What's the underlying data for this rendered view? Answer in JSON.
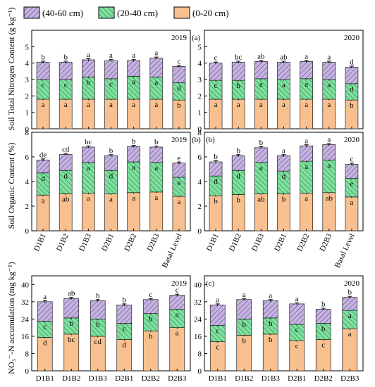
{
  "legend": [
    {
      "label": "(40-60 cm)",
      "color": "#c6b4e0",
      "hatch": "#6a4e98"
    },
    {
      "label": "(20-40 cm)",
      "color": "#7fe0a0",
      "hatch": "#2a8a4a"
    },
    {
      "label": "(0-20 cm)",
      "color": "#f9c08f",
      "hatch": null
    }
  ],
  "chart_data": [
    {
      "type": "bar",
      "stacked": true,
      "panel": "(a)",
      "title": "2019",
      "ylabel": "Soil Total Nitrogen Content (g kg⁻¹)",
      "ylim": [
        0,
        6
      ],
      "yticks": [
        0,
        1,
        2,
        3,
        4,
        5
      ],
      "categories": [
        "D1B1",
        "D1B2",
        "D1B3",
        "D2B1",
        "D2B2",
        "D2B3",
        "Basal Level"
      ],
      "series": [
        {
          "name": "(0-20 cm)",
          "values": [
            1.8,
            1.8,
            1.8,
            1.8,
            1.8,
            1.8,
            1.75
          ],
          "letters": [
            "a",
            "a",
            "a",
            "a",
            "a",
            "a",
            "b"
          ]
        },
        {
          "name": "(20-40 cm)",
          "values": [
            1.2,
            1.2,
            1.35,
            1.25,
            1.4,
            1.35,
            1.05
          ],
          "letters": [
            "c",
            "c",
            "b",
            "c",
            "a",
            "a",
            "d"
          ]
        },
        {
          "name": "(40-60 cm)",
          "values": [
            1.05,
            1.05,
            1.05,
            1.1,
            0.95,
            1.15,
            1.0
          ],
          "letters": [
            "b",
            "b",
            "a",
            "a",
            "a",
            "a",
            "c"
          ]
        }
      ]
    },
    {
      "type": "bar",
      "stacked": true,
      "panel": "",
      "title": "2020",
      "ylim": [
        0,
        6
      ],
      "yticks": [
        0,
        1,
        2,
        3,
        4,
        5
      ],
      "categories": [
        "D1B1",
        "D1B2",
        "D1B3",
        "D2B1",
        "D2B2",
        "D2B3",
        "Basal Level"
      ],
      "series": [
        {
          "name": "(0-20 cm)",
          "values": [
            1.8,
            1.8,
            1.8,
            1.8,
            1.8,
            1.8,
            1.75
          ],
          "letters": [
            "a",
            "a",
            "a",
            "a",
            "a",
            "a",
            "b"
          ]
        },
        {
          "name": "(20-40 cm)",
          "values": [
            1.15,
            1.15,
            1.25,
            1.2,
            1.25,
            1.2,
            1.0
          ],
          "letters": [
            "c",
            "b",
            "a",
            "a",
            "a",
            "a",
            "d"
          ]
        },
        {
          "name": "(40-60 cm)",
          "values": [
            1.05,
            1.1,
            1.05,
            1.05,
            1.05,
            1.05,
            1.0
          ],
          "letters": [
            "c",
            "bc",
            "ab",
            "ab",
            "a",
            "a",
            "d"
          ]
        }
      ]
    },
    {
      "type": "bar",
      "stacked": true,
      "panel": "(b)",
      "title": "2019",
      "ylabel": "Soil Organic Content (%)",
      "ylim": [
        0,
        8
      ],
      "yticks": [
        0,
        2,
        4,
        6,
        8
      ],
      "categories": [
        "D1B1",
        "D1B2",
        "D1B3",
        "D2B1",
        "D2B2",
        "D2B3",
        "Basal Level"
      ],
      "series": [
        {
          "name": "(0-20 cm)",
          "values": [
            2.9,
            3.0,
            3.05,
            3.0,
            3.1,
            3.15,
            2.8
          ],
          "letters": [
            "a",
            "ab",
            "a",
            "a",
            "a",
            "a",
            "a"
          ]
        },
        {
          "name": "(20-40 cm)",
          "values": [
            1.8,
            1.9,
            2.5,
            1.9,
            2.5,
            2.4,
            1.55
          ],
          "letters": [
            "d",
            "d",
            "a",
            "d",
            "a",
            "a",
            "e"
          ]
        },
        {
          "name": "(40-60 cm)",
          "values": [
            1.05,
            1.3,
            1.25,
            1.2,
            1.25,
            1.25,
            1.15
          ],
          "letters": [
            "de",
            "cd",
            "bc",
            "b",
            "b",
            "b",
            "e"
          ]
        }
      ]
    },
    {
      "type": "bar",
      "stacked": true,
      "panel": "(b)",
      "title": "2020",
      "ylim": [
        0,
        8
      ],
      "yticks": [
        0,
        2,
        4,
        6,
        8
      ],
      "categories": [
        "D1B1",
        "D1B2",
        "D1B3",
        "D2B1",
        "D2B2",
        "D2B3",
        "Basal Level"
      ],
      "series": [
        {
          "name": "(0-20 cm)",
          "values": [
            2.85,
            2.95,
            3.0,
            3.0,
            3.05,
            3.1,
            2.75
          ],
          "letters": [
            "b",
            "b",
            "ab",
            "b",
            "a",
            "ab",
            "a"
          ]
        },
        {
          "name": "(20-40 cm)",
          "values": [
            1.6,
            1.95,
            2.55,
            1.85,
            2.6,
            2.65,
            1.5
          ],
          "letters": [
            "d",
            "d",
            "a",
            "d",
            "a",
            "a",
            "e"
          ]
        },
        {
          "name": "(40-60 cm)",
          "values": [
            1.15,
            1.2,
            1.2,
            1.25,
            1.25,
            1.25,
            1.15
          ],
          "letters": [
            "b",
            "b",
            "b",
            "a",
            "a",
            "a",
            "c"
          ]
        }
      ]
    },
    {
      "type": "bar",
      "stacked": true,
      "panel": "",
      "title": "2019",
      "ylabel": "NO₃⁻-N accumulation (mg kg⁻¹)",
      "ylim": [
        0,
        44
      ],
      "yticks": [
        0,
        8,
        16,
        24,
        32,
        40
      ],
      "categories": [
        "D1B1",
        "D1B2",
        "D1B3",
        "D2B1",
        "D2B2",
        "D2B3"
      ],
      "series": [
        {
          "name": "(0-20 cm)",
          "values": [
            15.5,
            17.0,
            16.0,
            14.5,
            18.5,
            20.0
          ],
          "letters": [
            "d",
            "bc",
            "cd",
            "d",
            "b",
            "a"
          ]
        },
        {
          "name": "(20-40 cm)",
          "values": [
            7.5,
            7.5,
            8.0,
            7.5,
            8.0,
            8.5
          ],
          "letters": [
            "c",
            "b",
            "b",
            "c",
            "b",
            "a"
          ]
        },
        {
          "name": "(40-60 cm)",
          "values": [
            9.0,
            9.0,
            8.5,
            8.5,
            6.5,
            6.5
          ],
          "letters": [
            "a",
            "ab",
            "b",
            "b",
            "c",
            "c"
          ]
        }
      ]
    },
    {
      "type": "bar",
      "stacked": true,
      "panel": "(c)",
      "title": "2020",
      "ylim": [
        0,
        44
      ],
      "yticks": [
        0,
        8,
        16,
        24,
        32,
        40
      ],
      "categories": [
        "D1B1",
        "D1B2",
        "D1B3",
        "D2B1",
        "D2B2",
        "D2B3"
      ],
      "series": [
        {
          "name": "(0-20 cm)",
          "values": [
            13.5,
            16.5,
            17.0,
            14.0,
            14.5,
            19.5
          ],
          "letters": [
            "c",
            "b",
            "b",
            "c",
            "c",
            "a"
          ]
        },
        {
          "name": "(20-40 cm)",
          "values": [
            7.5,
            7.5,
            7.5,
            7.5,
            7.5,
            8.5
          ],
          "letters": [
            "c",
            "b",
            "b",
            "c",
            "b",
            "a"
          ]
        },
        {
          "name": "(40-60 cm)",
          "values": [
            9.5,
            9.0,
            8.0,
            9.5,
            6.5,
            6.0
          ],
          "letters": [
            "a",
            "a",
            "a",
            "a",
            "b",
            "b"
          ]
        }
      ]
    }
  ]
}
